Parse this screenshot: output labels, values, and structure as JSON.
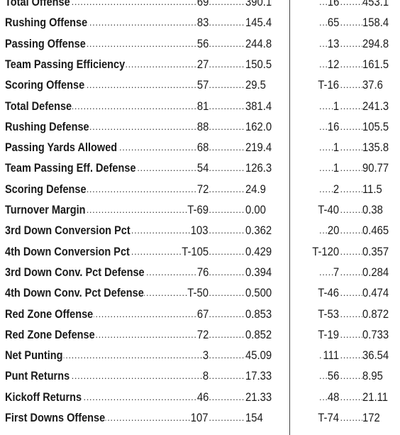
{
  "stats": [
    {
      "label": "Total Offense",
      "rank": "69",
      "value": "390.1",
      "opp_rank": "16",
      "opp_value": "453.1"
    },
    {
      "label": "Rushing Offense",
      "rank": "83",
      "value": "145.4",
      "opp_rank": "65",
      "opp_value": "158.4"
    },
    {
      "label": "Passing Offense",
      "rank": "56",
      "value": "244.8",
      "opp_rank": "13",
      "opp_value": "294.8"
    },
    {
      "label": "Team Passing Efficiency",
      "rank": "27",
      "value": "150.5",
      "opp_rank": "12",
      "opp_value": "161.5"
    },
    {
      "label": "Scoring Offense",
      "rank": "57",
      "value": "29.5",
      "opp_rank": "T-16",
      "opp_value": "37.6"
    },
    {
      "label": "Total Defense",
      "rank": "81",
      "value": "381.4",
      "opp_rank": "1",
      "opp_value": "241.3"
    },
    {
      "label": "Rushing Defense",
      "rank": "88",
      "value": "162.0",
      "opp_rank": "16",
      "opp_value": "105.5"
    },
    {
      "label": "Passing Yards Allowed",
      "rank": "68",
      "value": "219.4",
      "opp_rank": "1",
      "opp_value": "135.8"
    },
    {
      "label": "Team Passing Eff. Defense",
      "rank": "54",
      "value": "126.3",
      "opp_rank": "1",
      "opp_value": "90.77"
    },
    {
      "label": "Scoring Defense",
      "rank": "72",
      "value": "24.9",
      "opp_rank": "2",
      "opp_value": "11.5"
    },
    {
      "label": "Turnover Margin",
      "rank": "T-69",
      "value": "0.00",
      "opp_rank": "T-40",
      "opp_value": "0.38"
    },
    {
      "label": "3rd Down Conversion Pct",
      "rank": "103",
      "value": "0.362",
      "opp_rank": "20",
      "opp_value": "0.465"
    },
    {
      "label": "4th Down Conversion Pct",
      "rank": "T-105",
      "value": "0.429",
      "opp_rank": "T-120",
      "opp_value": "0.357"
    },
    {
      "label": "3rd Down Conv. Pct Defense",
      "rank": "76",
      "value": "0.394",
      "opp_rank": "7",
      "opp_value": "0.284"
    },
    {
      "label": "4th Down Conv. Pct Defense",
      "rank": "T-50",
      "value": "0.500",
      "opp_rank": "T-46",
      "opp_value": "0.474"
    },
    {
      "label": "Red Zone Offense",
      "rank": "67",
      "value": "0.853",
      "opp_rank": "T-53",
      "opp_value": "0.872"
    },
    {
      "label": "Red Zone Defense",
      "rank": "72",
      "value": "0.852",
      "opp_rank": "T-19",
      "opp_value": "0.733"
    },
    {
      "label": "Net Punting",
      "rank": "3",
      "value": "45.09",
      "opp_rank": "111",
      "opp_value": "36.54"
    },
    {
      "label": "Punt Returns",
      "rank": "8",
      "value": "17.33",
      "opp_rank": "56",
      "opp_value": "8.95"
    },
    {
      "label": "Kickoff Returns",
      "rank": "46",
      "value": "21.33",
      "opp_rank": "48",
      "opp_value": "21.11"
    },
    {
      "label": "First Downs Offense",
      "rank": "107",
      "value": "154",
      "opp_rank": "T-74",
      "opp_value": "172"
    }
  ]
}
